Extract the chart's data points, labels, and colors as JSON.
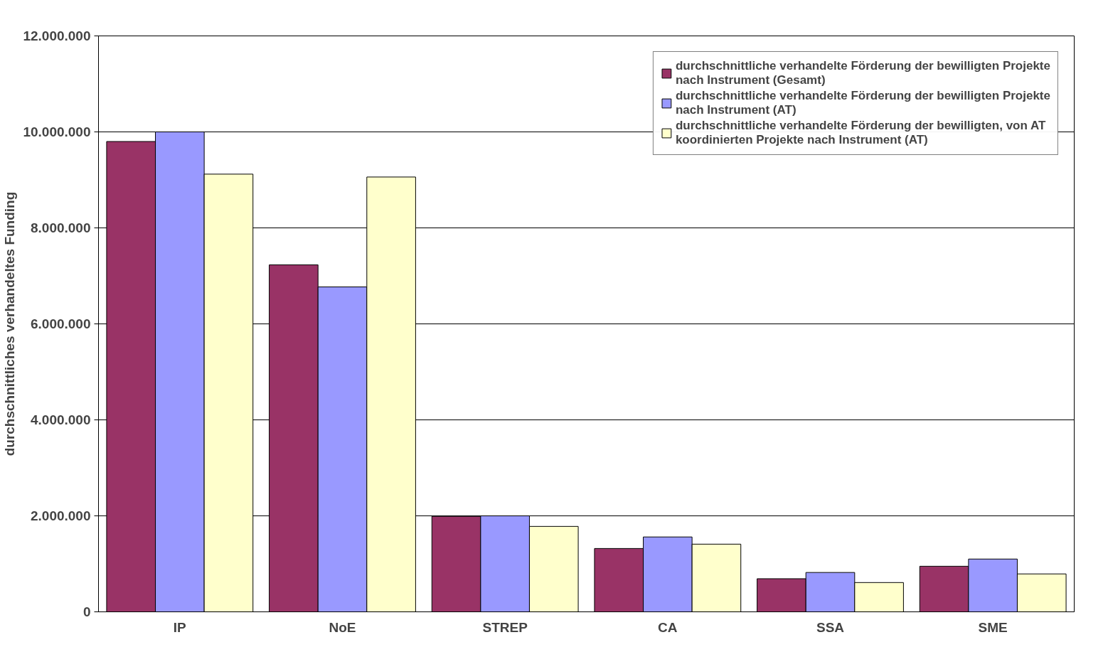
{
  "chart_data": {
    "type": "bar",
    "ylabel": "durchschnittliches verhandeltes Funding",
    "categories": [
      "IP",
      "NoE",
      "STREP",
      "CA",
      "SSA",
      "SME"
    ],
    "series": [
      {
        "name": "durchschnittliche verhandelte Förderung der bewilligten Projekte nach Instrument (Gesamt)",
        "color": "#993366",
        "values": [
          9800000,
          7230000,
          1990000,
          1320000,
          690000,
          950000
        ]
      },
      {
        "name": "durchschnittliche verhandelte Förderung der bewilligten Projekte nach Instrument (AT)",
        "color": "#9999ff",
        "values": [
          10000000,
          6770000,
          2000000,
          1560000,
          820000,
          1100000
        ]
      },
      {
        "name": "durchschnittliche verhandelte Förderung der bewilligten, von AT koordinierten Projekte nach Instrument (AT)",
        "color": "#ffffcc",
        "values": [
          9120000,
          9060000,
          1780000,
          1410000,
          610000,
          790000
        ]
      }
    ],
    "ylim": [
      0,
      12000000
    ],
    "yticks": [
      {
        "value": 0,
        "label": "0"
      },
      {
        "value": 2000000,
        "label": "2.000.000"
      },
      {
        "value": 4000000,
        "label": "4.000.000"
      },
      {
        "value": 6000000,
        "label": "6.000.000"
      },
      {
        "value": 8000000,
        "label": "8.000.000"
      },
      {
        "value": 10000000,
        "label": "10.000.000"
      },
      {
        "value": 12000000,
        "label": "12.000.000"
      }
    ],
    "grid": "y",
    "legend": "top right"
  }
}
